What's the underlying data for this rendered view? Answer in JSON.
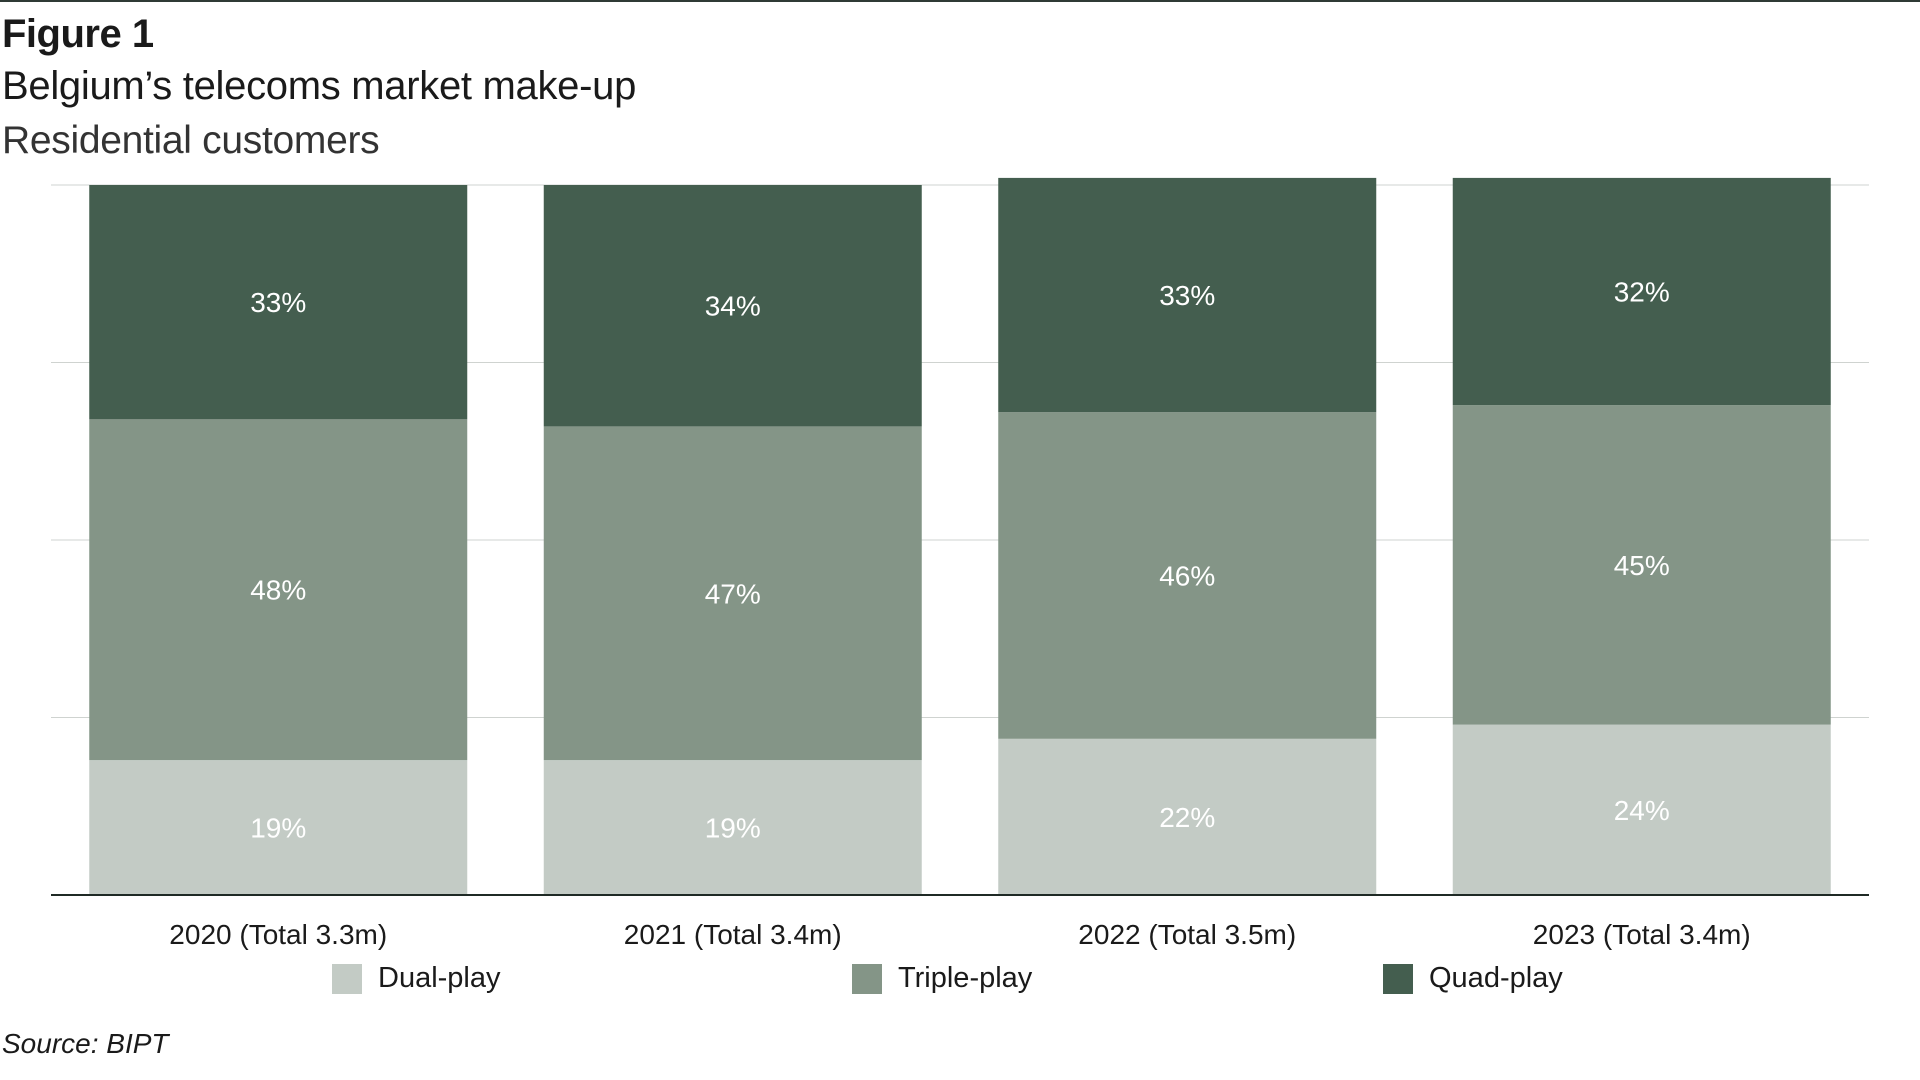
{
  "header": {
    "figure_label": "Figure 1",
    "title": "Belgium’s telecoms market make-up",
    "subtitle": "Residential customers"
  },
  "footer": {
    "source": "Source: BIPT"
  },
  "chart_data": {
    "type": "bar",
    "stacked": true,
    "title": "Belgium’s telecoms market make-up",
    "subtitle": "Residential customers",
    "categories": [
      "2020 (Total 3.3m)",
      "2021 (Total 3.4m)",
      "2022 (Total 3.5m)",
      "2023 (Total 3.4m)"
    ],
    "series": [
      {
        "name": "Dual-play",
        "values": [
          19,
          19,
          22,
          24
        ],
        "labels": [
          "19%",
          "19%",
          "22%",
          "24%"
        ],
        "color": "#c3cbc5"
      },
      {
        "name": "Triple-play",
        "values": [
          48,
          47,
          46,
          45
        ],
        "labels": [
          "48%",
          "47%",
          "46%",
          "45%"
        ],
        "color": "#849587"
      },
      {
        "name": "Quad-play",
        "values": [
          33,
          34,
          33,
          32
        ],
        "labels": [
          "33%",
          "34%",
          "33%",
          "32%"
        ],
        "color": "#445e4f"
      }
    ],
    "ylim": [
      0,
      100
    ],
    "xlabel": "",
    "ylabel": "",
    "grid": true,
    "legend_position": "bottom",
    "data_label_color": "#ffffff"
  }
}
